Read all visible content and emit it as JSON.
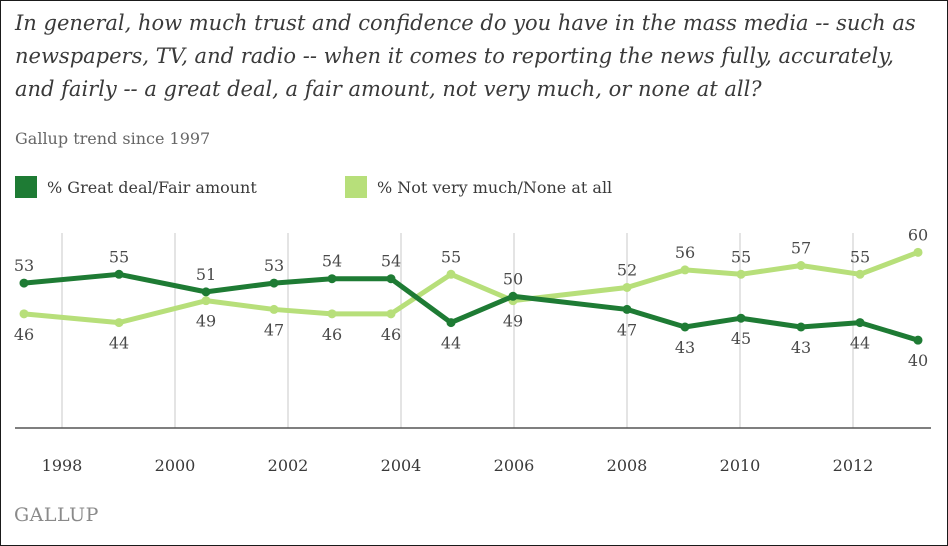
{
  "question": "In general, how much trust and confidence do you have in the mass media -- such as newspapers, TV, and radio -- when it comes to reporting the news fully, accurately, and fairly -- a great deal, a fair amount, not very much, or none at all?",
  "subtitle": "Gallup trend since 1997",
  "logo": "GALLUP",
  "colors": {
    "great_deal": "#1e7b34",
    "not_very_much": "#b7df7a",
    "grid": "#c8c8c8"
  },
  "chart_data": {
    "type": "line",
    "title": "In general, how much trust and confidence do you have in the mass media -- such as newspapers, TV, and radio -- when it comes to reporting the news fully, accurately, and fairly -- a great deal, a fair amount, not very much, or none at all?",
    "subtitle": "Gallup trend since 1997",
    "x": [
      1997.3,
      1999.1,
      2000.6,
      2001.7,
      2002.8,
      2003.7,
      2004.7,
      2005.7,
      2007.7,
      2008.7,
      2009.7,
      2010.7,
      2011.7,
      2012.7
    ],
    "x_ticks": [
      "1998",
      "2000",
      "2002",
      "2004",
      "2006",
      "2008",
      "2010",
      "2012"
    ],
    "series": [
      {
        "name": "% Great deal/Fair amount",
        "values": [
          53,
          55,
          51,
          53,
          54,
          54,
          44,
          50,
          47,
          43,
          45,
          43,
          44,
          40
        ]
      },
      {
        "name": "% Not very much/None at all",
        "values": [
          46,
          44,
          49,
          47,
          46,
          46,
          55,
          49,
          52,
          56,
          55,
          57,
          55,
          60
        ]
      }
    ],
    "ylim": [
      20,
      66
    ],
    "grid": "vertical",
    "legend": "top-left"
  }
}
